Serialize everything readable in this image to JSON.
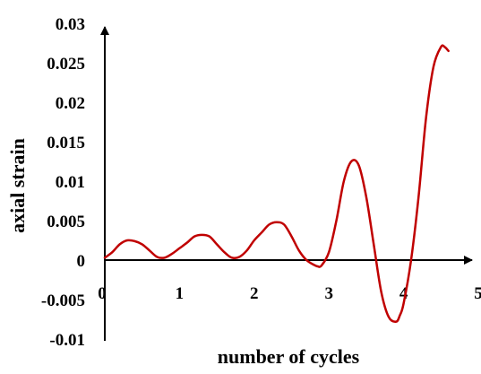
{
  "chart_data": {
    "type": "line",
    "title": "",
    "xlabel": "number of cycles",
    "ylabel": "axial strain",
    "xlim": [
      0,
      5
    ],
    "ylim": [
      -0.01,
      0.03
    ],
    "grid": false,
    "legend": "none",
    "x_ticks": [
      "0",
      "1",
      "2",
      "3",
      "4",
      "5"
    ],
    "y_ticks": [
      "0.03",
      "0.025",
      "0.02",
      "0.015",
      "0.01",
      "0.005",
      "0",
      "-0.005",
      "-0.01"
    ],
    "series": [
      {
        "color": "#c00000",
        "x": [
          0.0,
          0.1,
          0.2,
          0.3,
          0.4,
          0.5,
          0.6,
          0.7,
          0.8,
          0.9,
          1.0,
          1.1,
          1.2,
          1.3,
          1.4,
          1.5,
          1.6,
          1.7,
          1.8,
          1.9,
          2.0,
          2.1,
          2.2,
          2.3,
          2.4,
          2.5,
          2.6,
          2.7,
          2.8,
          2.85,
          2.9,
          3.0,
          3.1,
          3.2,
          3.3,
          3.4,
          3.5,
          3.6,
          3.7,
          3.8,
          3.9,
          3.95,
          4.0,
          4.1,
          4.2,
          4.3,
          4.4,
          4.5,
          4.55,
          4.6
        ],
        "y": [
          0.0003,
          0.001,
          0.002,
          0.0025,
          0.0024,
          0.002,
          0.0012,
          0.0004,
          0.0003,
          0.0008,
          0.0015,
          0.0022,
          0.003,
          0.0032,
          0.003,
          0.002,
          0.001,
          0.0003,
          0.0004,
          0.0012,
          0.0025,
          0.0035,
          0.0045,
          0.0048,
          0.0045,
          0.003,
          0.0012,
          0.0,
          -0.0006,
          -0.0008,
          -0.0007,
          0.001,
          0.005,
          0.01,
          0.0125,
          0.012,
          0.008,
          0.002,
          -0.004,
          -0.0072,
          -0.0078,
          -0.007,
          -0.0055,
          0.0,
          0.008,
          0.018,
          0.0245,
          0.027,
          0.027,
          0.0265
        ]
      }
    ]
  }
}
